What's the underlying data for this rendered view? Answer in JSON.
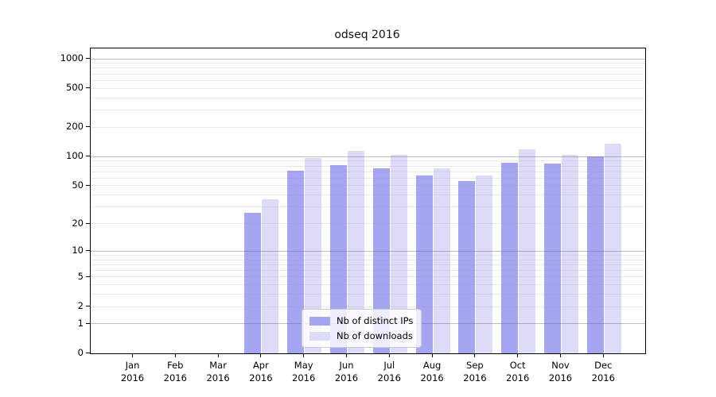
{
  "title": "odseq 2016",
  "chart_data": {
    "type": "bar",
    "title": "odseq 2016",
    "categories": [
      "Jan",
      "Feb",
      "Mar",
      "Apr",
      "May",
      "Jun",
      "Jul",
      "Aug",
      "Sep",
      "Oct",
      "Nov",
      "Dec"
    ],
    "year": "2016",
    "series": [
      {
        "name": "Nb of distinct IPs",
        "color": "#a5a5f2",
        "values": [
          0,
          0,
          0,
          26,
          71,
          82,
          75,
          64,
          56,
          86,
          84,
          100
        ]
      },
      {
        "name": "Nb of downloads",
        "color": "#dcdcf9",
        "values": [
          0,
          0,
          0,
          36,
          97,
          114,
          105,
          76,
          64,
          118,
          104,
          135
        ]
      }
    ],
    "xlabel": "",
    "ylabel": "",
    "y_ticks": [
      0,
      1,
      2,
      5,
      10,
      20,
      50,
      100,
      200,
      500,
      1000
    ],
    "y_scale": "log(1+y)",
    "ylim": [
      0,
      1000
    ],
    "grid": "log minor + major gridlines, horizontal only",
    "legend_position": "bottom-center-inside"
  },
  "legend": {
    "items": [
      {
        "label": "Nb of distinct IPs",
        "color": "#a5a5f2"
      },
      {
        "label": "Nb of downloads",
        "color": "#dcdcf9"
      }
    ]
  },
  "colors": {
    "background": "#ffffff",
    "bar_dark": "#a5a5f2",
    "bar_light": "#dcdcf9",
    "axis": "#000000",
    "grid_major": "#b3b3b3",
    "grid_minor": "#ececec",
    "legend_border": "#cccccc"
  }
}
